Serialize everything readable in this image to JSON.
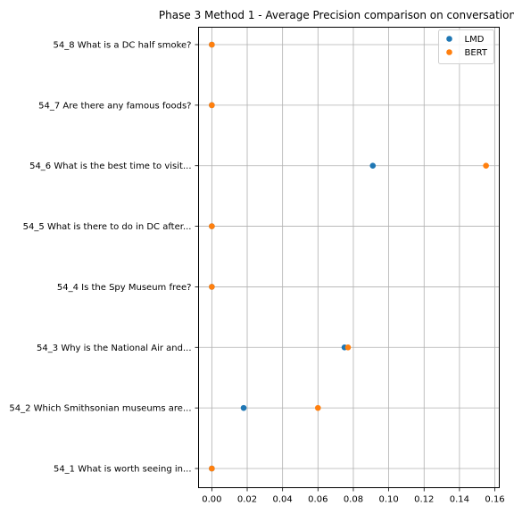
{
  "chart_data": {
    "type": "scatter",
    "title": "Phase 3 Method 1 - Average Precision comparison on conversation",
    "xlabel": "",
    "ylabel": "",
    "categories": [
      "54_1 What is worth seeing in...",
      "54_2 Which Smithsonian museums are...",
      "54_3 Why is the National Air and...",
      "54_4 Is the Spy Museum free?",
      "54_5 What is there to do in DC after...",
      "54_6 What is the best time to visit...",
      "54_7 Are there any famous foods?",
      "54_8 What is a DC half smoke?"
    ],
    "x_ticks": [
      "0.00",
      "0.02",
      "0.04",
      "0.06",
      "0.08",
      "0.10",
      "0.12",
      "0.14",
      "0.16"
    ],
    "xlim": [
      -0.0075,
      0.1625
    ],
    "grid": true,
    "legend_position": "top-right",
    "series": [
      {
        "name": "LMD",
        "color": "#1f77b4",
        "values": [
          0.0,
          0.018,
          0.075,
          0.0,
          0.0,
          0.091,
          0.0,
          0.0
        ]
      },
      {
        "name": "BERT",
        "color": "#ff7f0e",
        "values": [
          0.0,
          0.06,
          0.077,
          0.0,
          0.0,
          0.155,
          0.0,
          0.0
        ]
      }
    ]
  }
}
